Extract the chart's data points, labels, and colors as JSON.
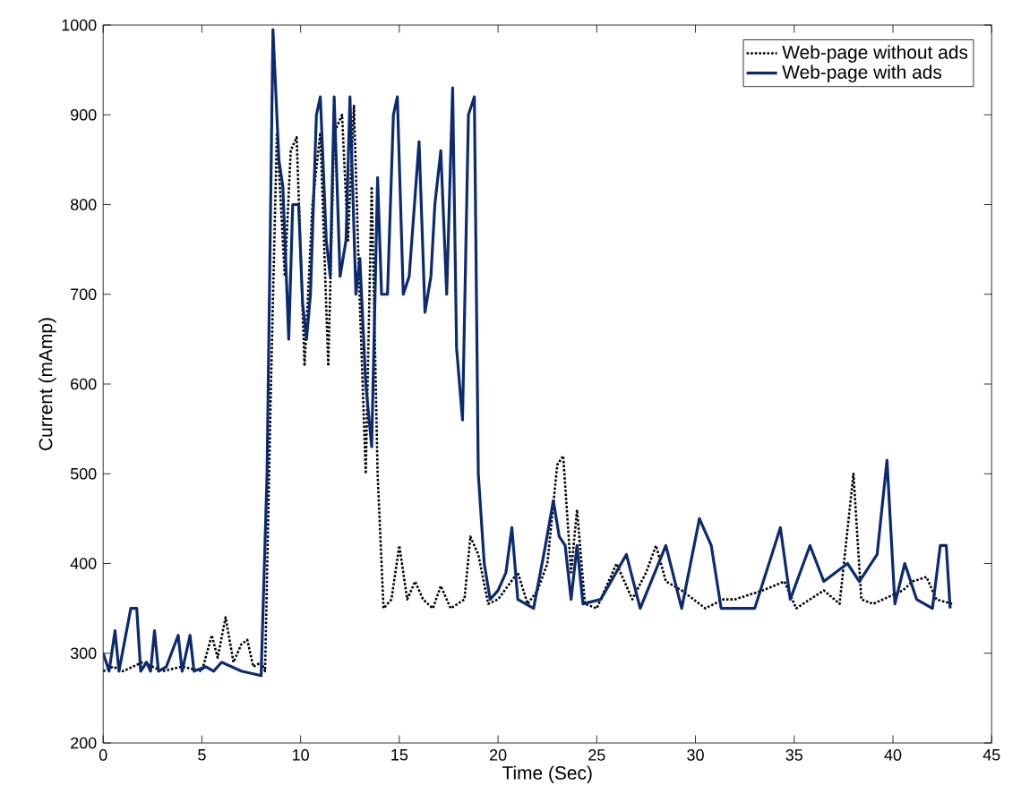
{
  "chart_data": {
    "type": "line",
    "xlabel": "Time (Sec)",
    "ylabel": "Current (mAmp)",
    "xlim": [
      0,
      45
    ],
    "ylim": [
      200,
      1000
    ],
    "xticks": [
      0,
      5,
      10,
      15,
      20,
      25,
      30,
      35,
      40,
      45
    ],
    "yticks": [
      200,
      300,
      400,
      500,
      600,
      700,
      800,
      900,
      1000
    ],
    "legend": "top right",
    "grid": false,
    "marker": "none",
    "series": [
      {
        "name": "Web-page without ads",
        "color": "#000000",
        "line_style": "dotted",
        "x": [
          0,
          0.5,
          1,
          2,
          3,
          4,
          5,
          5.5,
          5.8,
          6.2,
          6.6,
          7.0,
          7.3,
          7.6,
          8.0,
          8.2,
          8.5,
          8.8,
          9.2,
          9.5,
          9.8,
          10.2,
          10.6,
          11.0,
          11.4,
          11.7,
          12.1,
          12.4,
          12.7,
          13.0,
          13.3,
          13.6,
          13.9,
          14.2,
          14.6,
          15.0,
          15.4,
          15.8,
          16.2,
          16.7,
          17.1,
          17.6,
          18.3,
          18.6,
          19.0,
          19.5,
          20.0,
          21.0,
          21.5,
          22.0,
          22.5,
          23.0,
          23.3,
          23.7,
          24.0,
          24.4,
          25.0,
          26.0,
          26.8,
          27.5,
          28.0,
          28.5,
          29.3,
          30.5,
          31.4,
          32.0,
          33.4,
          34.5,
          35.1,
          36.5,
          37.3,
          38.0,
          38.4,
          39.0,
          40.5,
          41.0,
          41.7,
          42.2,
          43.0
        ],
        "values": [
          280,
          285,
          280,
          290,
          280,
          285,
          280,
          320,
          295,
          340,
          290,
          310,
          315,
          285,
          290,
          280,
          600,
          880,
          720,
          860,
          875,
          620,
          800,
          880,
          620,
          880,
          900,
          760,
          910,
          690,
          500,
          820,
          500,
          350,
          360,
          420,
          360,
          380,
          360,
          350,
          375,
          350,
          360,
          430,
          410,
          355,
          360,
          390,
          355,
          370,
          400,
          510,
          520,
          390,
          460,
          355,
          350,
          400,
          360,
          390,
          420,
          380,
          370,
          350,
          360,
          360,
          370,
          380,
          350,
          370,
          355,
          500,
          360,
          355,
          370,
          380,
          385,
          360,
          355
        ]
      },
      {
        "name": "Web-page with ads",
        "color": "#0b2a6f",
        "line_style": "solid",
        "x": [
          0,
          0.3,
          0.6,
          0.8,
          1.4,
          1.7,
          1.9,
          2.2,
          2.4,
          2.6,
          2.8,
          3.2,
          3.8,
          4.0,
          4.4,
          4.6,
          5.2,
          5.6,
          6.0,
          7.0,
          8.0,
          8.3,
          8.6,
          8.9,
          9.1,
          9.4,
          9.6,
          9.9,
          10.1,
          10.3,
          10.5,
          10.8,
          11.0,
          11.3,
          11.5,
          11.7,
          12.0,
          12.3,
          12.5,
          12.8,
          13.0,
          13.3,
          13.6,
          13.9,
          14.1,
          14.4,
          14.7,
          14.9,
          15.2,
          15.5,
          16.0,
          16.3,
          16.6,
          16.8,
          17.1,
          17.4,
          17.7,
          17.9,
          18.2,
          18.5,
          18.8,
          19.0,
          19.3,
          19.6,
          20.0,
          20.4,
          20.7,
          21.0,
          21.8,
          22.4,
          22.8,
          23.1,
          23.4,
          23.7,
          24.0,
          24.3,
          25.2,
          26.5,
          27.2,
          28.5,
          29.3,
          30.2,
          30.8,
          31.3,
          33.0,
          34.3,
          34.8,
          35.8,
          36.5,
          37.7,
          38.3,
          39.2,
          39.7,
          40.1,
          40.6,
          41.2,
          42.0,
          42.4,
          42.7,
          42.9
        ],
        "values": [
          300,
          280,
          325,
          280,
          350,
          350,
          280,
          290,
          280,
          325,
          280,
          285,
          320,
          280,
          320,
          280,
          285,
          280,
          290,
          280,
          275,
          500,
          995,
          850,
          820,
          650,
          800,
          800,
          690,
          650,
          700,
          900,
          920,
          760,
          720,
          920,
          720,
          760,
          920,
          700,
          740,
          600,
          530,
          830,
          700,
          700,
          900,
          920,
          700,
          720,
          870,
          680,
          720,
          800,
          860,
          700,
          930,
          640,
          560,
          900,
          920,
          500,
          400,
          360,
          370,
          390,
          440,
          360,
          350,
          420,
          470,
          430,
          420,
          360,
          420,
          355,
          360,
          410,
          350,
          420,
          350,
          450,
          420,
          350,
          350,
          440,
          360,
          420,
          380,
          400,
          380,
          410,
          515,
          355,
          400,
          360,
          350,
          420,
          420,
          350
        ]
      }
    ]
  }
}
